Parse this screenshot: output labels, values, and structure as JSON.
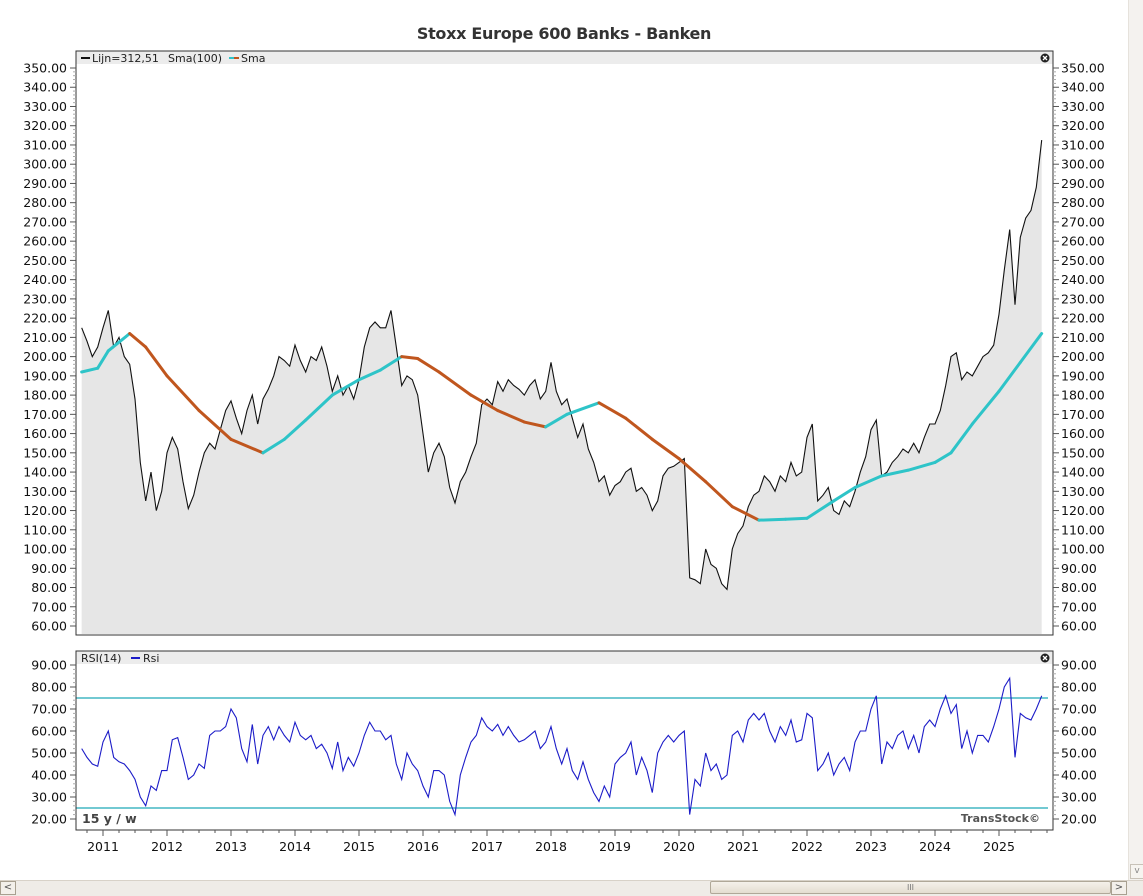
{
  "chart_data": [
    {
      "type": "area",
      "title": "Stoxx Europe 600 Banks - Banken",
      "legend": "top-left",
      "legend_text": {
        "line": "Lijn=312,51",
        "sma_period": "Sma(100)",
        "sma": "Sma"
      },
      "ylim": [
        60,
        350
      ],
      "yticks": [
        "350.00",
        "340.00",
        "330.00",
        "320.00",
        "310.00",
        "300.00",
        "290.00",
        "280.00",
        "270.00",
        "260.00",
        "250.00",
        "240.00",
        "230.00",
        "220.00",
        "210.00",
        "200.00",
        "190.00",
        "180.00",
        "170.00",
        "160.00",
        "150.00",
        "140.00",
        "130.00",
        "120.00",
        "110.00",
        "100.00",
        "90.00",
        "80.00",
        "70.00",
        "60.00"
      ],
      "colors": {
        "line": "#111111",
        "fill": "#e6e6e6",
        "sma_rising": "#2ec4c8",
        "sma_falling": "#c0561e"
      },
      "price": {
        "2010": [
          215,
          208,
          200,
          205
        ],
        "2011": [
          215,
          224,
          205,
          210,
          200,
          196,
          178,
          145,
          125,
          140,
          120,
          130
        ],
        "2012": [
          150,
          158,
          152,
          135,
          121,
          128,
          140,
          150,
          155,
          152,
          162,
          172
        ],
        "2013": [
          177,
          168,
          160,
          172,
          180,
          165,
          178,
          183,
          190,
          200,
          198,
          195
        ],
        "2014": [
          206,
          198,
          192,
          200,
          198,
          205,
          195,
          182,
          190,
          180,
          185,
          178
        ],
        "2015": [
          188,
          205,
          215,
          218,
          215,
          215,
          224,
          205,
          185,
          190,
          188,
          180
        ],
        "2016": [
          160,
          140,
          150,
          155,
          148,
          132,
          124,
          135,
          140,
          148,
          155,
          175
        ],
        "2017": [
          178,
          175,
          187,
          182,
          188,
          185,
          183,
          180,
          185,
          188,
          178,
          182
        ],
        "2018": [
          197,
          182,
          175,
          178,
          168,
          158,
          165,
          152,
          145,
          135,
          138,
          128
        ],
        "2019": [
          133,
          135,
          140,
          142,
          130,
          132,
          128,
          120,
          125,
          138,
          142,
          143
        ],
        "2020": [
          145,
          147,
          85,
          84,
          82,
          100,
          92,
          90,
          82,
          79,
          100,
          108
        ],
        "2021": [
          112,
          122,
          128,
          130,
          138,
          135,
          130,
          138,
          135,
          145,
          138,
          140
        ],
        "2022": [
          158,
          165,
          125,
          128,
          132,
          120,
          118,
          125,
          122,
          130,
          140,
          148
        ],
        "2023": [
          162,
          167,
          138,
          140,
          145,
          148,
          152,
          150,
          155,
          150,
          158,
          165
        ],
        "2024": [
          165,
          172,
          185,
          200,
          202,
          188,
          192,
          190,
          195,
          200,
          202,
          206
        ],
        "2025": [
          222,
          245,
          266,
          227,
          262,
          272,
          276,
          288,
          312.51
        ]
      },
      "sma_100": [
        [
          "2010-09",
          192
        ],
        [
          "2010-12",
          194
        ],
        [
          "2011-02",
          203
        ],
        [
          "2011-06",
          212
        ],
        [
          "2011-09",
          205
        ],
        [
          "2012-01",
          190
        ],
        [
          "2012-07",
          172
        ],
        [
          "2013-01",
          157
        ],
        [
          "2013-07",
          150
        ],
        [
          "2013-11",
          157
        ],
        [
          "2014-03",
          167
        ],
        [
          "2014-08",
          180
        ],
        [
          "2015-01",
          188
        ],
        [
          "2015-05",
          193
        ],
        [
          "2015-09",
          200
        ],
        [
          "2015-12",
          199
        ],
        [
          "2016-04",
          192
        ],
        [
          "2016-10",
          180
        ],
        [
          "2017-03",
          172
        ],
        [
          "2017-08",
          166
        ],
        [
          "2017-12",
          163.5
        ],
        [
          "2018-04",
          170
        ],
        [
          "2018-10",
          176
        ],
        [
          "2019-03",
          168
        ],
        [
          "2019-08",
          157
        ],
        [
          "2020-01",
          147
        ],
        [
          "2020-06",
          135
        ],
        [
          "2020-11",
          122
        ],
        [
          "2021-04",
          115
        ],
        [
          "2021-09",
          115.5
        ],
        [
          "2022-01",
          116
        ],
        [
          "2022-06",
          125
        ],
        [
          "2022-10",
          132
        ],
        [
          "2023-03",
          138
        ],
        [
          "2023-08",
          141
        ],
        [
          "2024-01",
          145
        ],
        [
          "2024-04",
          150
        ],
        [
          "2024-08",
          165
        ],
        [
          "2025-01",
          182
        ],
        [
          "2025-05",
          197
        ],
        [
          "2025-09",
          212
        ]
      ]
    },
    {
      "type": "line",
      "legend": "top-left",
      "legend_text": {
        "period": "RSI(14)",
        "series": "Rsi"
      },
      "ylim": [
        20,
        90
      ],
      "yticks": [
        "90.00",
        "80.00",
        "70.00",
        "60.00",
        "50.00",
        "40.00",
        "30.00",
        "20.00"
      ],
      "reference_lines": [
        75,
        25
      ],
      "colors": {
        "line": "#1c1cc8",
        "reference": "#1fa9b8"
      },
      "rsi": {
        "2010": [
          52,
          48,
          45,
          44
        ],
        "2011": [
          55,
          60,
          48,
          46,
          45,
          42,
          38,
          30,
          26,
          35,
          33,
          42
        ],
        "2012": [
          42,
          56,
          57,
          48,
          38,
          40,
          45,
          43,
          58,
          60,
          60,
          62
        ],
        "2013": [
          70,
          66,
          52,
          46,
          63,
          45,
          58,
          62,
          56,
          62,
          58,
          55
        ],
        "2014": [
          64,
          58,
          56,
          58,
          52,
          54,
          50,
          43,
          55,
          42,
          48,
          44
        ],
        "2015": [
          50,
          58,
          64,
          60,
          60,
          56,
          58,
          45,
          38,
          50,
          45,
          42
        ],
        "2016": [
          35,
          30,
          42,
          42,
          40,
          28,
          22,
          40,
          48,
          55,
          58,
          66
        ],
        "2017": [
          62,
          60,
          63,
          58,
          62,
          58,
          55,
          56,
          58,
          60,
          52,
          55
        ],
        "2018": [
          62,
          52,
          45,
          52,
          42,
          38,
          46,
          38,
          32,
          28,
          35,
          30
        ],
        "2019": [
          45,
          48,
          50,
          55,
          40,
          48,
          42,
          32,
          50,
          55,
          58,
          55
        ],
        "2020": [
          58,
          60,
          22,
          38,
          35,
          50,
          42,
          45,
          38,
          40,
          58,
          60
        ],
        "2021": [
          55,
          65,
          68,
          65,
          68,
          60,
          55,
          62,
          58,
          65,
          55,
          56
        ],
        "2022": [
          68,
          66,
          42,
          45,
          50,
          40,
          45,
          48,
          42,
          55,
          60,
          60
        ],
        "2023": [
          70,
          76,
          45,
          55,
          52,
          58,
          60,
          52,
          58,
          50,
          62,
          65
        ],
        "2024": [
          62,
          70,
          76,
          68,
          72,
          52,
          60,
          50,
          58,
          58,
          55,
          62
        ],
        "2025": [
          70,
          80,
          84,
          48,
          68,
          66,
          65,
          70,
          76
        ]
      },
      "period_label": "15 y / w",
      "watermark": "TransStock©"
    }
  ],
  "x_axis": {
    "ticks": [
      "2011",
      "2012",
      "2013",
      "2014",
      "2015",
      "2016",
      "2017",
      "2018",
      "2019",
      "2020",
      "2021",
      "2022",
      "2023",
      "2024",
      "2025"
    ]
  },
  "scrollbar": {
    "grip": "III",
    "left": "<",
    "right": ">",
    "down": "v"
  }
}
